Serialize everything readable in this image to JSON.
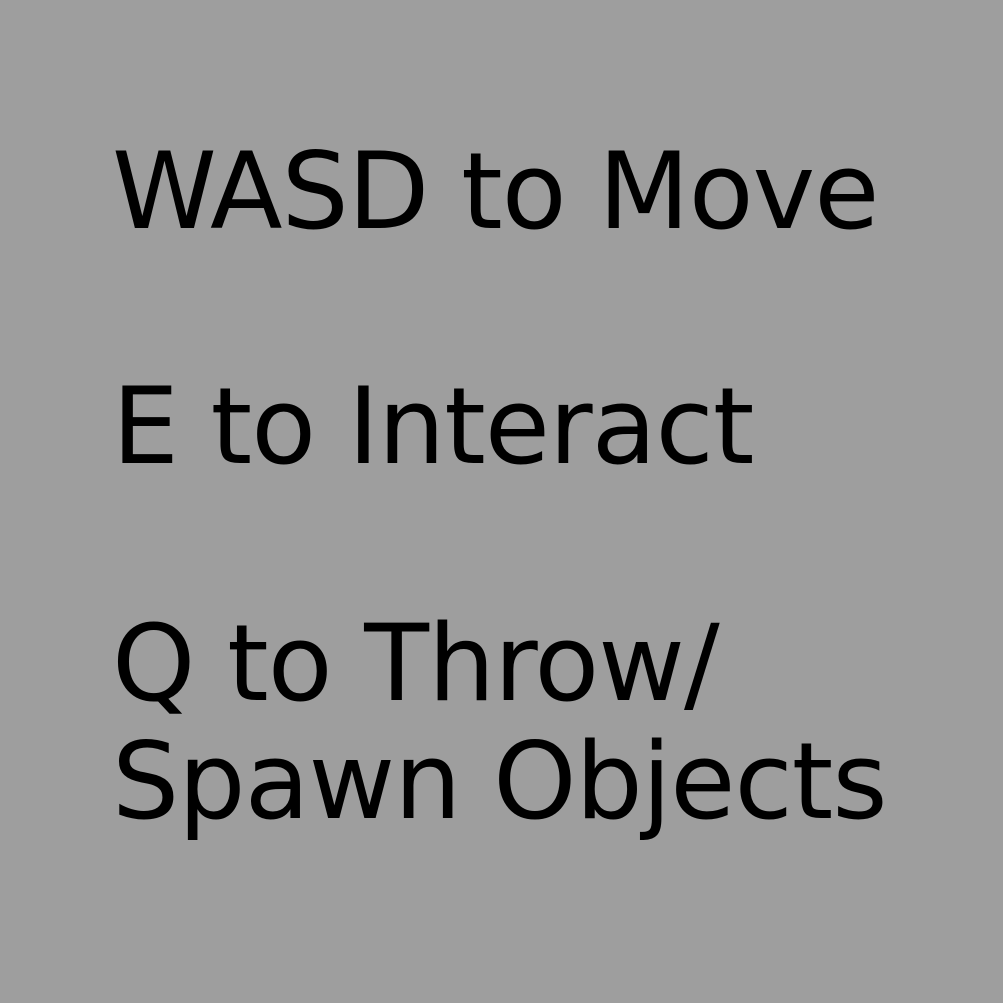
{
  "colors": {
    "background": "#9e9e9e",
    "text": "#000000"
  },
  "controls": {
    "move": "WASD to Move",
    "interact": "E to Interact",
    "throw_line_1": "Q to Throw/",
    "throw_line_2": "Spawn Objects"
  }
}
